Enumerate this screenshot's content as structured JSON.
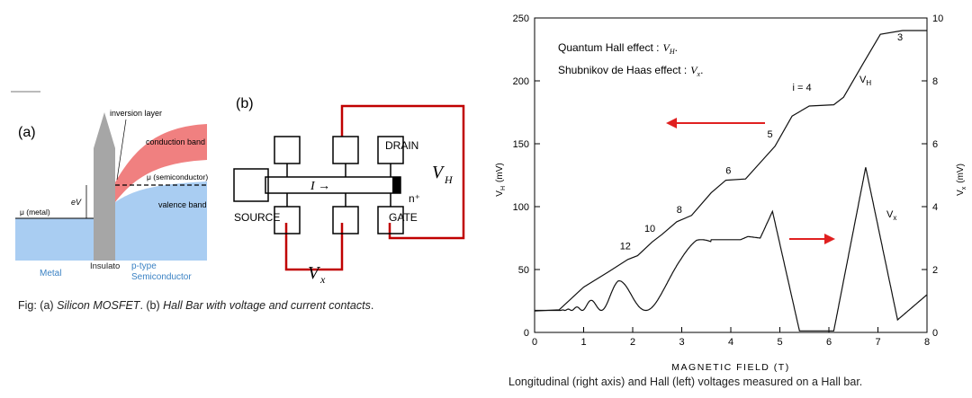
{
  "mosfet": {
    "panel_label": "(a)",
    "inversion_layer": "inversion layer",
    "conduction_band": "conduction band",
    "mu_semiconductor": "μ (semiconductor)",
    "ev": "eV",
    "valence_band": "valence band",
    "mu_metal": "μ (metal)",
    "metal": "Metal",
    "insulator": "Insulato",
    "ptype_1": "p-type",
    "ptype_2": "Semiconductor",
    "colors": {
      "conduction": "#f08080",
      "valence": "#a9cdf2",
      "insulator": "#a6a6a6",
      "metal": "#a9cdf2",
      "label_blue": "#3b82c4"
    }
  },
  "hallbar": {
    "panel_label": "(b)",
    "drain": "DRAIN",
    "source": "SOURCE",
    "gate": "GATE",
    "n_plus": "n⁺",
    "current": "I →",
    "vh": "V",
    "vh_sub": "H",
    "vx": "V",
    "vx_sub": "x",
    "wire_color": "#c00000"
  },
  "left_caption": {
    "prefix": "Fig:  (a) ",
    "a_text": "Silicon MOSFET",
    "middle": ".  (b) ",
    "b_text": "Hall Bar with voltage and current contacts",
    "suffix": "."
  },
  "right_caption": "Longitudinal (right axis) and Hall (left) voltages measured on a Hall bar.",
  "chart_data": {
    "type": "line",
    "xlabel": "MAGNETIC FIELD (T)",
    "ylabel_left": "V_H (mV)",
    "ylabel_right": "V_x (mV)",
    "xlim": [
      0,
      8
    ],
    "ylim_left": [
      0,
      250
    ],
    "ylim_right": [
      0,
      10
    ],
    "x_ticks": [
      "0",
      "1",
      "2",
      "3",
      "4",
      "5",
      "6",
      "7",
      "8"
    ],
    "y_ticks_left": [
      "0",
      "50",
      "100",
      "150",
      "200",
      "250"
    ],
    "y_ticks_right": [
      "0",
      "2",
      "4",
      "6",
      "8",
      "10"
    ],
    "legend_lines": [
      "Quantum Hall effect :",
      "Shubnikov de Haas effect :"
    ],
    "legend_syms": [
      "V_H.",
      "V_x."
    ],
    "annotations": {
      "vh_curve": "V_H",
      "vx_curve": "V_x",
      "plateaus": [
        {
          "label": "3",
          "x": 7.45,
          "y": 232
        },
        {
          "label": "i = 4",
          "x": 5.45,
          "y": 192
        },
        {
          "label": "5",
          "x": 4.8,
          "y": 155
        },
        {
          "label": "6",
          "x": 3.95,
          "y": 126
        },
        {
          "label": "8",
          "x": 2.95,
          "y": 95
        },
        {
          "label": "10",
          "x": 2.35,
          "y": 80
        },
        {
          "label": "12",
          "x": 1.85,
          "y": 66
        }
      ]
    },
    "series": [
      {
        "name": "V_H",
        "axis": "left",
        "points": [
          [
            0,
            17
          ],
          [
            0.5,
            18
          ],
          [
            1,
            36
          ],
          [
            1.5,
            48
          ],
          [
            1.9,
            58
          ],
          [
            2.1,
            61
          ],
          [
            2.4,
            72
          ],
          [
            2.6,
            78
          ],
          [
            2.9,
            88
          ],
          [
            3.2,
            93
          ],
          [
            3.6,
            111
          ],
          [
            3.9,
            121
          ],
          [
            4.3,
            122
          ],
          [
            4.6,
            135
          ],
          [
            4.9,
            148
          ],
          [
            5.25,
            172
          ],
          [
            5.6,
            180
          ],
          [
            6.1,
            181
          ],
          [
            6.3,
            187
          ],
          [
            6.7,
            214
          ],
          [
            7.05,
            237
          ],
          [
            7.5,
            240
          ],
          [
            8,
            240
          ]
        ]
      },
      {
        "name": "V_x",
        "axis": "right",
        "points": [
          [
            0,
            0.65
          ],
          [
            0.3,
            0.7
          ],
          [
            0.5,
            0.72
          ],
          [
            0.8,
            0.9
          ],
          [
            1.3,
            1.35
          ],
          [
            1.8,
            1.7
          ],
          [
            2.2,
            2.1
          ],
          [
            2.55,
            2.45
          ],
          [
            3.0,
            2.7
          ],
          [
            3.3,
            2.95
          ],
          [
            4.2,
            2.95
          ],
          [
            4.35,
            3.05
          ],
          [
            4.6,
            3.0
          ],
          [
            4.85,
            3.85
          ],
          [
            5.4,
            0.05
          ],
          [
            6.1,
            0.05
          ],
          [
            6.75,
            5.25
          ],
          [
            7.4,
            0.4
          ],
          [
            8,
            1.2
          ]
        ]
      }
    ]
  }
}
